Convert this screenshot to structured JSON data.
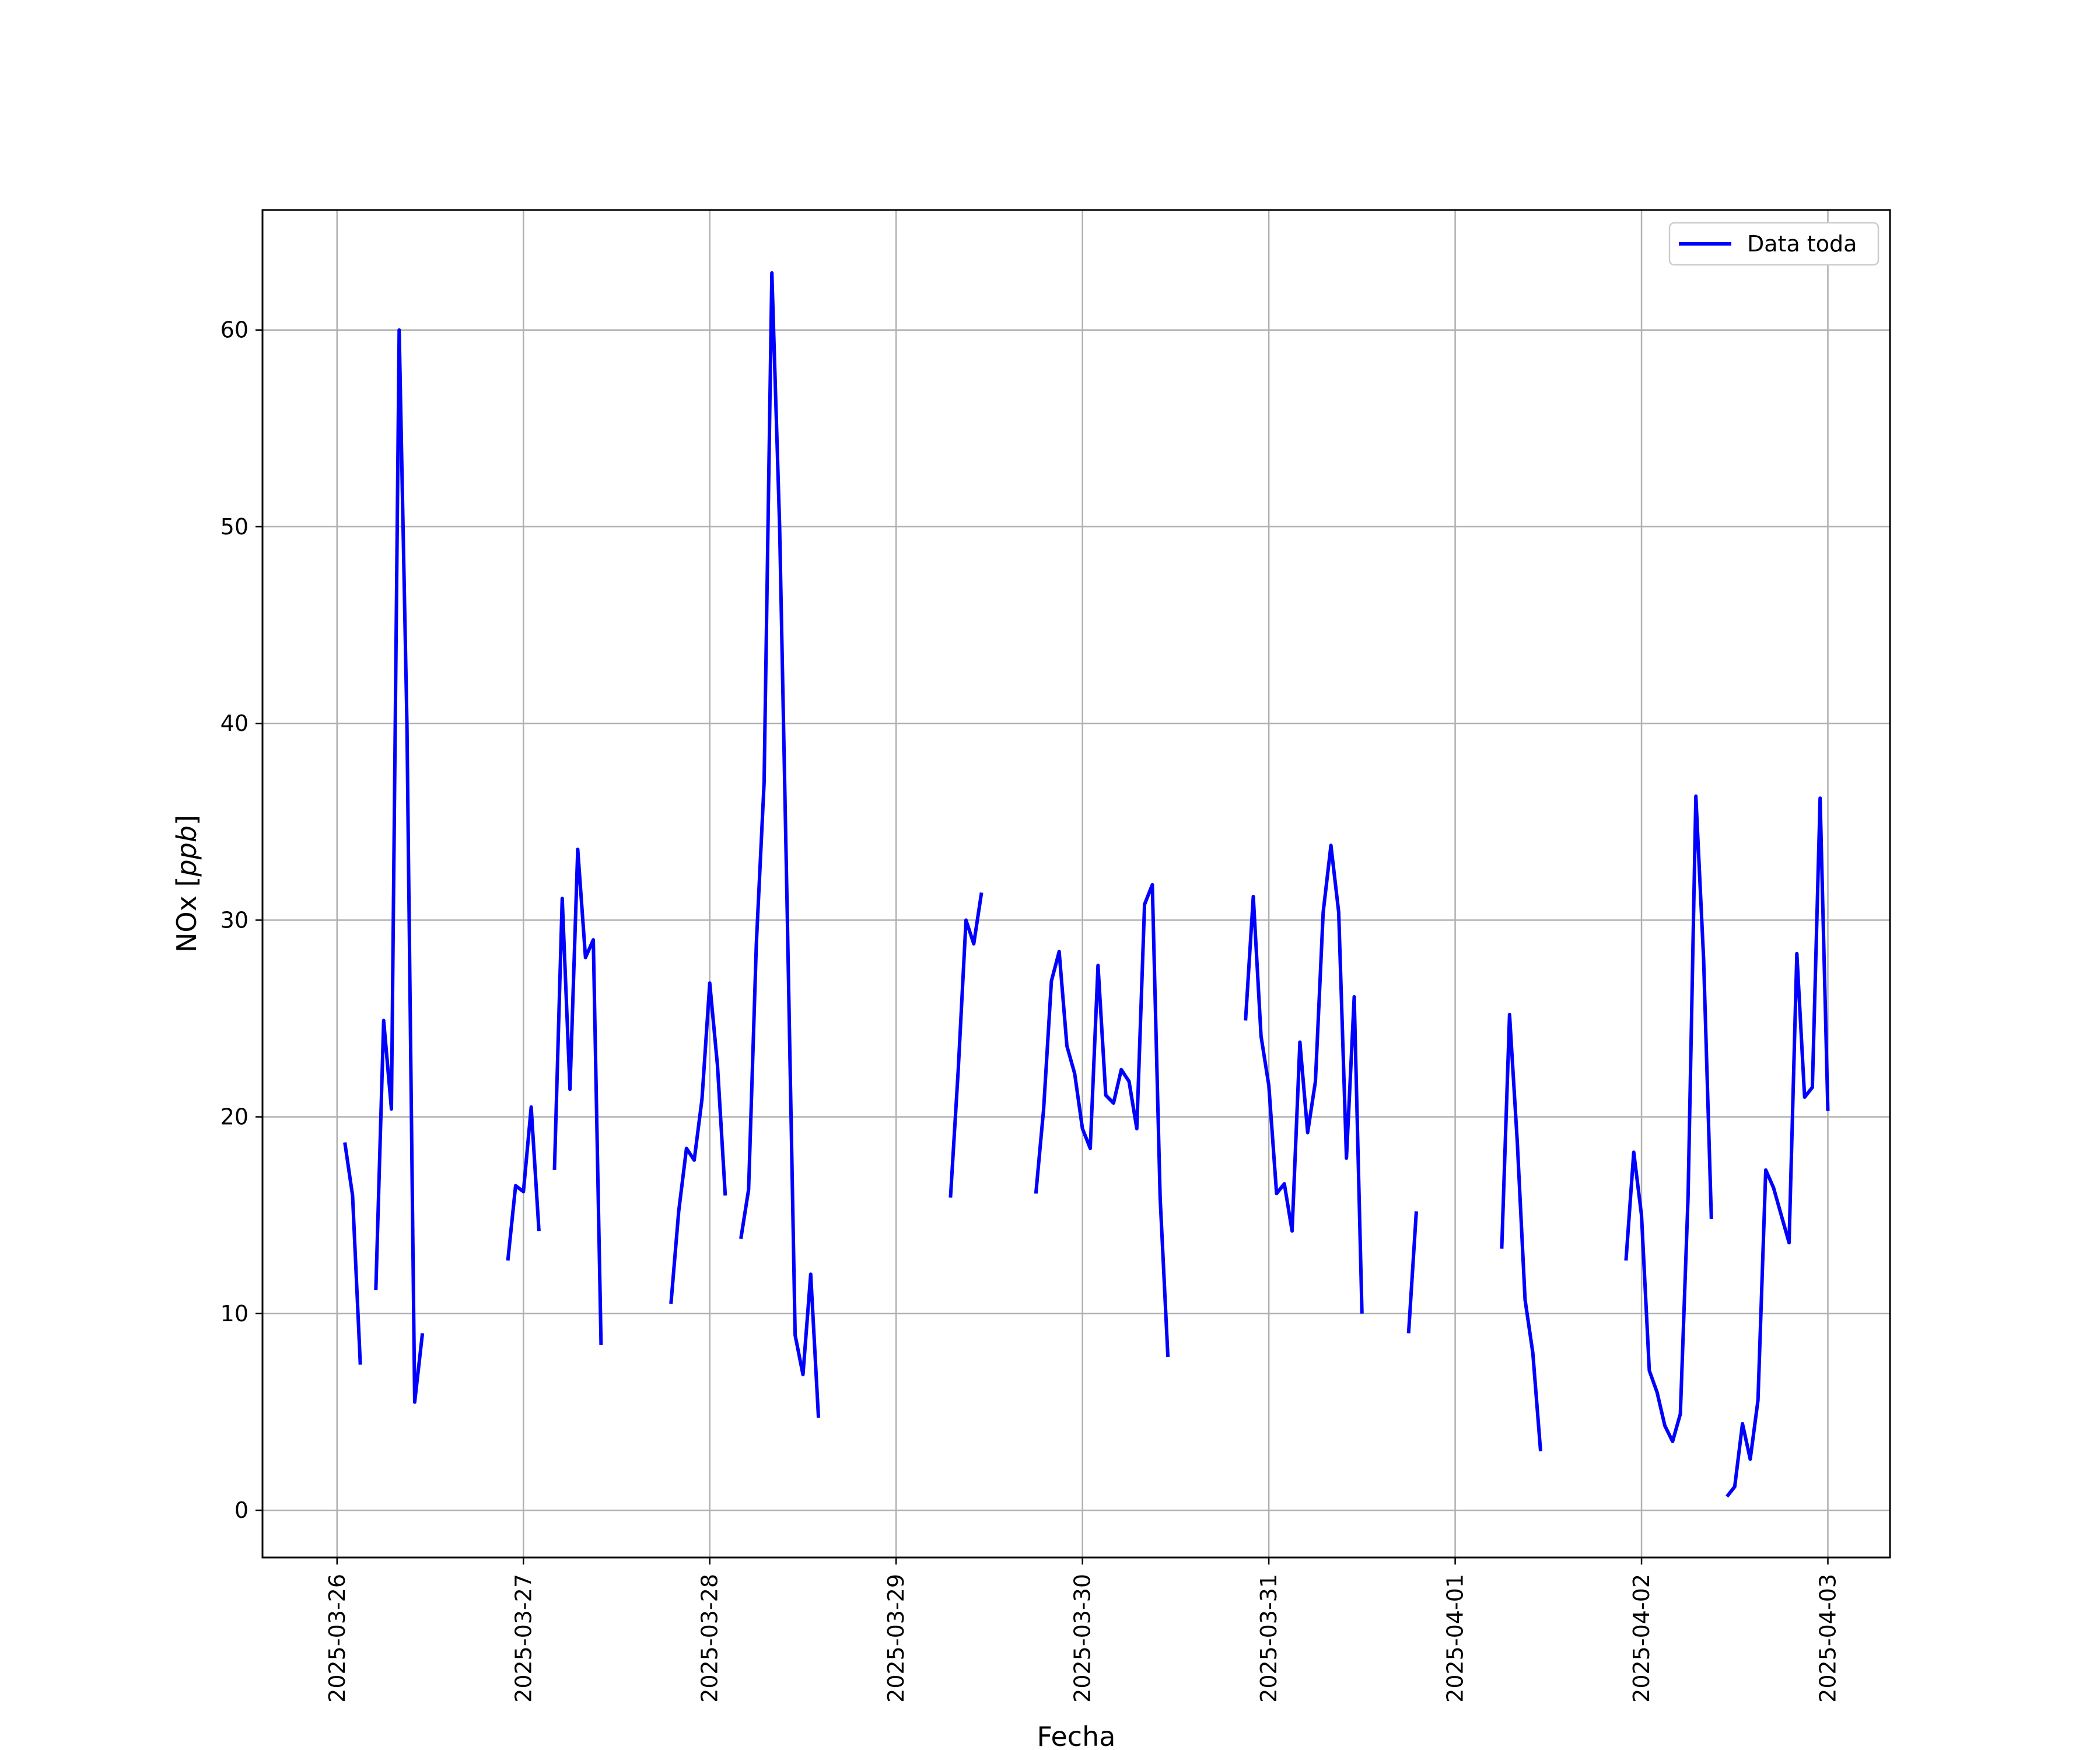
{
  "chart_data": {
    "type": "line",
    "xlabel": "Fecha",
    "ylabel_prefix": "NOx [",
    "ylabel_unit": "ppb",
    "ylabel_suffix": "]",
    "x_ticks": [
      "2025-03-26",
      "2025-03-27",
      "2025-03-28",
      "2025-03-29",
      "2025-03-30",
      "2025-03-31",
      "2025-04-01",
      "2025-04-02",
      "2025-04-03"
    ],
    "y_ticks": [
      0,
      10,
      20,
      30,
      40,
      50,
      60
    ],
    "xlim": [
      "2025-03-25T14:24",
      "2025-04-03T08:00"
    ],
    "ylim": [
      -2.4,
      66.1
    ],
    "grid": true,
    "legend_position": "top-right",
    "series": [
      {
        "name": "Data toda",
        "color": "#0000ff",
        "segments": [
          [
            [
              "2025-03-26T01:00",
              18.7
            ],
            [
              "2025-03-26T02:00",
              16.0
            ],
            [
              "2025-03-26T03:00",
              7.4
            ]
          ],
          [
            [
              "2025-03-26T05:00",
              11.2
            ],
            [
              "2025-03-26T06:00",
              24.9
            ],
            [
              "2025-03-26T07:00",
              20.4
            ],
            [
              "2025-03-26T08:00",
              60.0
            ],
            [
              "2025-03-26T09:00",
              40.0
            ],
            [
              "2025-03-26T10:00",
              5.5
            ],
            [
              "2025-03-26T11:00",
              9.0
            ]
          ],
          [
            [
              "2025-03-26T22:00",
              12.7
            ],
            [
              "2025-03-26T23:00",
              16.5
            ],
            [
              "2025-03-27T00:00",
              16.2
            ],
            [
              "2025-03-27T01:00",
              20.5
            ],
            [
              "2025-03-27T02:00",
              14.2
            ]
          ],
          [
            [
              "2025-03-27T04:00",
              17.3
            ],
            [
              "2025-03-27T05:00",
              31.1
            ],
            [
              "2025-03-27T06:00",
              21.4
            ],
            [
              "2025-03-27T07:00",
              33.6
            ],
            [
              "2025-03-27T08:00",
              28.1
            ],
            [
              "2025-03-27T09:00",
              29.0
            ],
            [
              "2025-03-27T10:00",
              8.4
            ]
          ],
          [
            [
              "2025-03-27T19:00",
              10.5
            ],
            [
              "2025-03-27T20:00",
              15.2
            ],
            [
              "2025-03-27T21:00",
              18.4
            ],
            [
              "2025-03-27T22:00",
              17.8
            ],
            [
              "2025-03-27T23:00",
              20.9
            ],
            [
              "2025-03-28T00:00",
              26.8
            ],
            [
              "2025-03-28T01:00",
              22.6
            ],
            [
              "2025-03-28T02:00",
              16.0
            ]
          ],
          [
            [
              "2025-03-28T04:00",
              13.8
            ],
            [
              "2025-03-28T05:00",
              16.3
            ],
            [
              "2025-03-28T06:00",
              28.8
            ],
            [
              "2025-03-28T07:00",
              37.0
            ],
            [
              "2025-03-28T08:00",
              62.9
            ],
            [
              "2025-03-28T09:00",
              50.0
            ],
            [
              "2025-03-28T10:00",
              30.0
            ],
            [
              "2025-03-28T11:00",
              8.9
            ],
            [
              "2025-03-28T12:00",
              6.9
            ],
            [
              "2025-03-28T13:00",
              12.0
            ],
            [
              "2025-03-28T14:00",
              4.7
            ]
          ],
          [
            [
              "2025-03-29T07:00",
              15.9
            ],
            [
              "2025-03-29T08:00",
              22.4
            ],
            [
              "2025-03-29T09:00",
              30.0
            ],
            [
              "2025-03-29T10:00",
              28.8
            ],
            [
              "2025-03-29T11:00",
              31.4
            ]
          ],
          [
            [
              "2025-03-29T18:00",
              16.1
            ],
            [
              "2025-03-29T19:00",
              20.4
            ],
            [
              "2025-03-29T20:00",
              26.9
            ],
            [
              "2025-03-29T21:00",
              28.4
            ],
            [
              "2025-03-29T22:00",
              23.6
            ],
            [
              "2025-03-29T23:00",
              22.2
            ],
            [
              "2025-03-30T00:00",
              19.4
            ],
            [
              "2025-03-30T01:00",
              18.4
            ],
            [
              "2025-03-30T02:00",
              27.7
            ],
            [
              "2025-03-30T03:00",
              21.1
            ],
            [
              "2025-03-30T04:00",
              20.7
            ],
            [
              "2025-03-30T05:00",
              22.4
            ],
            [
              "2025-03-30T06:00",
              21.8
            ],
            [
              "2025-03-30T07:00",
              19.4
            ],
            [
              "2025-03-30T08:00",
              30.8
            ],
            [
              "2025-03-30T09:00",
              31.8
            ],
            [
              "2025-03-30T10:00",
              15.9
            ],
            [
              "2025-03-30T11:00",
              7.8
            ]
          ],
          [
            [
              "2025-03-30T21:00",
              24.9
            ],
            [
              "2025-03-30T22:00",
              31.2
            ],
            [
              "2025-03-30T23:00",
              24.1
            ],
            [
              "2025-03-31T00:00",
              21.6
            ],
            [
              "2025-03-31T01:00",
              16.1
            ],
            [
              "2025-03-31T02:00",
              16.6
            ],
            [
              "2025-03-31T03:00",
              14.2
            ],
            [
              "2025-03-31T04:00",
              23.8
            ],
            [
              "2025-03-31T05:00",
              19.2
            ],
            [
              "2025-03-31T06:00",
              21.8
            ],
            [
              "2025-03-31T07:00",
              30.4
            ],
            [
              "2025-03-31T08:00",
              33.8
            ],
            [
              "2025-03-31T09:00",
              30.4
            ],
            [
              "2025-03-31T10:00",
              17.9
            ],
            [
              "2025-03-31T11:00",
              26.1
            ],
            [
              "2025-03-31T12:00",
              10.0
            ]
          ],
          [
            [
              "2025-03-31T18:00",
              9.0
            ],
            [
              "2025-03-31T19:00",
              15.2
            ]
          ],
          [
            [
              "2025-04-01T06:00",
              13.3
            ],
            [
              "2025-04-01T07:00",
              25.2
            ],
            [
              "2025-04-01T08:00",
              18.7
            ],
            [
              "2025-04-01T09:00",
              10.7
            ],
            [
              "2025-04-01T10:00",
              8.0
            ],
            [
              "2025-04-01T11:00",
              3.0
            ]
          ],
          [
            [
              "2025-04-01T22:00",
              12.7
            ],
            [
              "2025-04-01T23:00",
              18.2
            ],
            [
              "2025-04-02T00:00",
              15.0
            ],
            [
              "2025-04-02T01:00",
              7.1
            ],
            [
              "2025-04-02T02:00",
              6.0
            ],
            [
              "2025-04-02T03:00",
              4.3
            ],
            [
              "2025-04-02T04:00",
              3.5
            ],
            [
              "2025-04-02T05:00",
              4.9
            ],
            [
              "2025-04-02T06:00",
              16.0
            ],
            [
              "2025-04-02T07:00",
              36.3
            ],
            [
              "2025-04-02T08:00",
              28.0
            ],
            [
              "2025-04-02T09:00",
              14.8
            ]
          ],
          [
            [
              "2025-04-02T11:00",
              0.7
            ],
            [
              "2025-04-02T12:00",
              1.2
            ],
            [
              "2025-04-02T13:00",
              4.4
            ],
            [
              "2025-04-02T14:00",
              2.6
            ],
            [
              "2025-04-02T15:00",
              5.6
            ],
            [
              "2025-04-02T16:00",
              17.3
            ],
            [
              "2025-04-02T17:00",
              16.4
            ],
            [
              "2025-04-02T18:00",
              15.0
            ],
            [
              "2025-04-02T19:00",
              13.6
            ],
            [
              "2025-04-02T20:00",
              28.3
            ],
            [
              "2025-04-02T21:00",
              21.0
            ],
            [
              "2025-04-02T22:00",
              21.5
            ],
            [
              "2025-04-02T23:00",
              36.2
            ],
            [
              "2025-04-03T00:00",
              20.3
            ]
          ]
        ]
      }
    ]
  }
}
